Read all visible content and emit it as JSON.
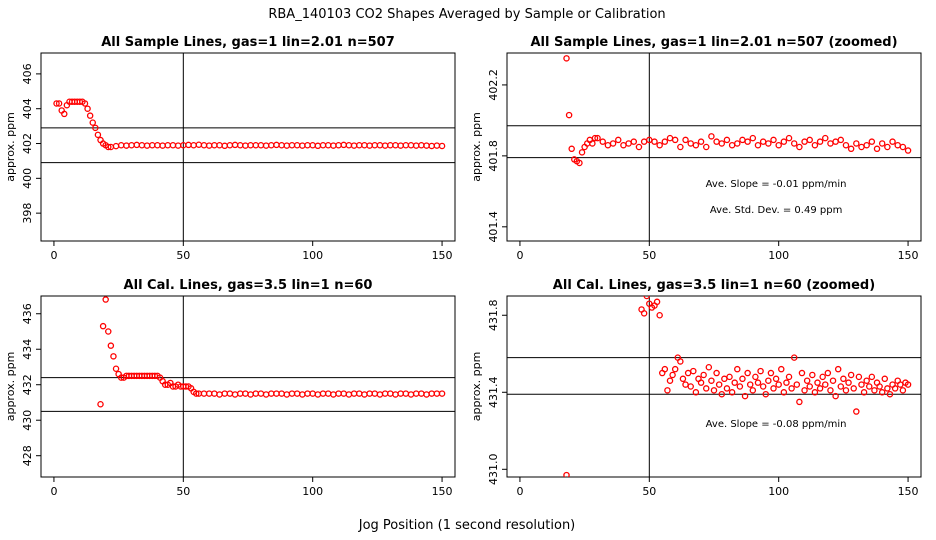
{
  "figure": {
    "title": "RBA_140103  CO2 Shapes Averaged by Sample or Calibration",
    "xlabel": "Jog Position (1 second resolution)"
  },
  "chart_data": [
    {
      "type": "scatter",
      "title": "All Sample Lines, gas=1 lin=2.01 n=507",
      "ylabel": "approx. ppm",
      "xlim": [
        -5,
        155
      ],
      "ylim": [
        396.4,
        407.2
      ],
      "xticks": [
        0,
        50,
        100,
        150
      ],
      "yticks": [
        398,
        400,
        402,
        404,
        406
      ],
      "vline": 50,
      "hlines": [
        402.9,
        400.9
      ],
      "marker_color": "#ff0000",
      "annotations": [],
      "x": [
        1,
        2,
        3,
        4,
        5,
        6,
        7,
        8,
        9,
        10,
        11,
        12,
        13,
        14,
        15,
        16,
        17,
        18,
        19,
        20,
        21,
        22,
        24,
        26,
        28,
        30,
        32,
        34,
        36,
        38,
        40,
        42,
        44,
        46,
        48,
        50,
        52,
        54,
        56,
        58,
        60,
        62,
        64,
        66,
        68,
        70,
        72,
        74,
        76,
        78,
        80,
        82,
        84,
        86,
        88,
        90,
        92,
        94,
        96,
        98,
        100,
        102,
        104,
        106,
        108,
        110,
        112,
        114,
        116,
        118,
        120,
        122,
        124,
        126,
        128,
        130,
        132,
        134,
        136,
        138,
        140,
        142,
        144,
        146,
        148,
        150
      ],
      "y": [
        404.3,
        404.3,
        403.9,
        403.7,
        404.2,
        404.4,
        404.4,
        404.4,
        404.4,
        404.4,
        404.4,
        404.3,
        404.0,
        403.6,
        403.2,
        402.9,
        402.5,
        402.2,
        402.0,
        401.9,
        401.8,
        401.8,
        401.85,
        401.9,
        401.88,
        401.9,
        401.92,
        401.9,
        401.88,
        401.9,
        401.9,
        401.88,
        401.9,
        401.9,
        401.88,
        401.9,
        401.92,
        401.9,
        401.93,
        401.9,
        401.88,
        401.9,
        401.9,
        401.87,
        401.9,
        401.92,
        401.9,
        401.88,
        401.9,
        401.9,
        401.9,
        401.88,
        401.9,
        401.92,
        401.9,
        401.88,
        401.9,
        401.9,
        401.88,
        401.9,
        401.9,
        401.87,
        401.9,
        401.9,
        401.88,
        401.9,
        401.92,
        401.9,
        401.88,
        401.9,
        401.9,
        401.88,
        401.9,
        401.9,
        401.88,
        401.9,
        401.9,
        401.88,
        401.9,
        401.9,
        401.88,
        401.9,
        401.88,
        401.86,
        401.88,
        401.86
      ]
    },
    {
      "type": "scatter",
      "title": "All Sample Lines, gas=1 lin=2.01 n=507 (zoomed)",
      "ylabel": "approx. ppm",
      "xlim": [
        -5,
        155
      ],
      "ylim": [
        401.32,
        402.38
      ],
      "xticks": [
        0,
        50,
        100,
        150
      ],
      "yticks": [
        401.4,
        401.8,
        402.2
      ],
      "vline": 50,
      "hlines": [
        401.97,
        401.79
      ],
      "marker_color": "#ff0000",
      "annotations": [
        "Ave. Slope =  -0.01  ppm/min",
        "Ave. Std. Dev. =  0.49  ppm"
      ],
      "x": [
        18,
        19,
        20,
        21,
        22,
        23,
        24,
        25,
        26,
        27,
        28,
        29,
        30,
        32,
        34,
        36,
        38,
        40,
        42,
        44,
        46,
        48,
        50,
        52,
        54,
        56,
        58,
        60,
        62,
        64,
        66,
        68,
        70,
        72,
        74,
        76,
        78,
        80,
        82,
        84,
        86,
        88,
        90,
        92,
        94,
        96,
        98,
        100,
        102,
        104,
        106,
        108,
        110,
        112,
        114,
        116,
        118,
        120,
        122,
        124,
        126,
        128,
        130,
        132,
        134,
        136,
        138,
        140,
        142,
        144,
        146,
        148,
        150
      ],
      "y": [
        402.35,
        402.03,
        401.84,
        401.78,
        401.77,
        401.76,
        401.82,
        401.85,
        401.87,
        401.89,
        401.87,
        401.9,
        401.9,
        401.88,
        401.86,
        401.87,
        401.89,
        401.86,
        401.87,
        401.88,
        401.85,
        401.88,
        401.89,
        401.88,
        401.86,
        401.88,
        401.9,
        401.89,
        401.85,
        401.89,
        401.87,
        401.86,
        401.88,
        401.85,
        401.91,
        401.88,
        401.87,
        401.89,
        401.86,
        401.87,
        401.89,
        401.88,
        401.9,
        401.86,
        401.88,
        401.87,
        401.89,
        401.86,
        401.88,
        401.9,
        401.87,
        401.85,
        401.88,
        401.89,
        401.86,
        401.88,
        401.9,
        401.87,
        401.88,
        401.89,
        401.86,
        401.84,
        401.87,
        401.85,
        401.86,
        401.88,
        401.84,
        401.87,
        401.85,
        401.88,
        401.86,
        401.85,
        401.83
      ]
    },
    {
      "type": "scatter",
      "title": "All Cal. Lines, gas=3.5 lin=1 n=60",
      "ylabel": "approx. ppm",
      "xlim": [
        -5,
        155
      ],
      "ylim": [
        426.8,
        437.0
      ],
      "xticks": [
        0,
        50,
        100,
        150
      ],
      "yticks": [
        428,
        430,
        432,
        434,
        436
      ],
      "vline": 50,
      "hlines": [
        432.4,
        430.5
      ],
      "marker_color": "#ff0000",
      "annotations": [],
      "x": [
        18,
        19,
        20,
        21,
        22,
        23,
        24,
        25,
        26,
        27,
        28,
        29,
        30,
        31,
        32,
        33,
        34,
        35,
        36,
        37,
        38,
        39,
        40,
        41,
        42,
        43,
        44,
        45,
        46,
        47,
        48,
        49,
        50,
        51,
        52,
        53,
        54,
        55,
        56,
        58,
        60,
        62,
        64,
        66,
        68,
        70,
        72,
        74,
        76,
        78,
        80,
        82,
        84,
        86,
        88,
        90,
        92,
        94,
        96,
        98,
        100,
        102,
        104,
        106,
        108,
        110,
        112,
        114,
        116,
        118,
        120,
        122,
        124,
        126,
        128,
        130,
        132,
        134,
        136,
        138,
        140,
        142,
        144,
        146,
        148,
        150
      ],
      "y": [
        430.9,
        435.3,
        436.8,
        435.0,
        434.2,
        433.6,
        432.9,
        432.6,
        432.4,
        432.4,
        432.5,
        432.5,
        432.5,
        432.5,
        432.5,
        432.5,
        432.5,
        432.5,
        432.5,
        432.5,
        432.5,
        432.5,
        432.5,
        432.4,
        432.2,
        432.0,
        432.0,
        432.1,
        431.9,
        431.9,
        432.0,
        431.9,
        431.9,
        431.9,
        431.9,
        431.8,
        431.6,
        431.5,
        431.5,
        431.5,
        431.5,
        431.5,
        431.45,
        431.5,
        431.5,
        431.45,
        431.5,
        431.5,
        431.45,
        431.5,
        431.5,
        431.45,
        431.5,
        431.5,
        431.5,
        431.45,
        431.5,
        431.5,
        431.45,
        431.5,
        431.5,
        431.45,
        431.5,
        431.5,
        431.45,
        431.5,
        431.5,
        431.45,
        431.5,
        431.5,
        431.45,
        431.5,
        431.5,
        431.45,
        431.5,
        431.5,
        431.45,
        431.5,
        431.5,
        431.45,
        431.5,
        431.5,
        431.45,
        431.5,
        431.5,
        431.5
      ]
    },
    {
      "type": "scatter",
      "title": "All Cal. Lines, gas=3.5 lin=1 n=60 (zoomed)",
      "ylabel": "approx. ppm",
      "xlim": [
        -5,
        155
      ],
      "ylim": [
        430.96,
        431.9
      ],
      "xticks": [
        0,
        50,
        100,
        150
      ],
      "yticks": [
        431.0,
        431.4,
        431.8
      ],
      "vline": 50,
      "hlines": [
        431.58,
        431.39
      ],
      "marker_color": "#ff0000",
      "annotations": [
        "Ave. Slope =  -0.08  ppm/min"
      ],
      "x": [
        18,
        47,
        48,
        49,
        50,
        51,
        52,
        53,
        54,
        55,
        56,
        57,
        58,
        59,
        60,
        61,
        62,
        63,
        64,
        65,
        66,
        67,
        68,
        69,
        70,
        71,
        72,
        73,
        74,
        75,
        76,
        77,
        78,
        79,
        80,
        81,
        82,
        83,
        84,
        85,
        86,
        87,
        88,
        89,
        90,
        91,
        92,
        93,
        94,
        95,
        96,
        97,
        98,
        99,
        100,
        101,
        102,
        103,
        104,
        105,
        106,
        107,
        108,
        109,
        110,
        111,
        112,
        113,
        114,
        115,
        116,
        117,
        118,
        119,
        120,
        121,
        122,
        123,
        124,
        125,
        126,
        127,
        128,
        129,
        130,
        131,
        132,
        133,
        134,
        135,
        136,
        137,
        138,
        139,
        140,
        141,
        142,
        143,
        144,
        145,
        146,
        147,
        148,
        149,
        150
      ],
      "y": [
        430.97,
        431.83,
        431.81,
        431.9,
        431.86,
        431.84,
        431.85,
        431.87,
        431.8,
        431.5,
        431.52,
        431.41,
        431.46,
        431.49,
        431.52,
        431.58,
        431.56,
        431.47,
        431.44,
        431.5,
        431.43,
        431.51,
        431.4,
        431.47,
        431.45,
        431.49,
        431.42,
        431.53,
        431.46,
        431.41,
        431.5,
        431.44,
        431.39,
        431.47,
        431.42,
        431.48,
        431.4,
        431.45,
        431.52,
        431.43,
        431.47,
        431.38,
        431.5,
        431.44,
        431.41,
        431.48,
        431.45,
        431.51,
        431.43,
        431.39,
        431.46,
        431.5,
        431.42,
        431.47,
        431.44,
        431.52,
        431.4,
        431.45,
        431.48,
        431.42,
        431.58,
        431.44,
        431.35,
        431.5,
        431.41,
        431.46,
        431.43,
        431.49,
        431.4,
        431.45,
        431.42,
        431.48,
        431.44,
        431.5,
        431.41,
        431.46,
        431.38,
        431.52,
        431.43,
        431.47,
        431.41,
        431.45,
        431.49,
        431.42,
        431.3,
        431.48,
        431.44,
        431.4,
        431.46,
        431.43,
        431.48,
        431.41,
        431.45,
        431.43,
        431.4,
        431.47,
        431.42,
        431.39,
        431.44,
        431.42,
        431.46,
        431.44,
        431.41,
        431.45,
        431.44
      ]
    }
  ]
}
